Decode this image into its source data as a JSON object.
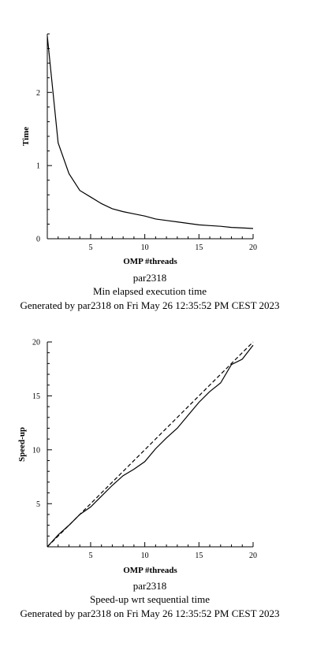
{
  "chart_data": [
    {
      "type": "line",
      "xlabel": "OMP #threads",
      "ylabel": "Time",
      "xlim": [
        1,
        20
      ],
      "ylim": [
        0,
        2.8
      ],
      "xticks": [
        5,
        10,
        15,
        20
      ],
      "yticks": [
        0,
        1,
        2
      ],
      "captions": [
        "par2318",
        "Min elapsed execution time",
        "Generated by par2318 on Fri May 26 12:35:52 PM CEST 2023"
      ],
      "series": [
        {
          "x": [
            1,
            2,
            3,
            4,
            5,
            6,
            7,
            8,
            9,
            10,
            11,
            12,
            13,
            14,
            15,
            16,
            17,
            18,
            19,
            20
          ],
          "values": [
            2.77,
            1.31,
            0.89,
            0.66,
            0.57,
            0.48,
            0.41,
            0.37,
            0.34,
            0.31,
            0.27,
            0.25,
            0.23,
            0.21,
            0.19,
            0.18,
            0.17,
            0.155,
            0.148,
            0.14
          ],
          "style": "solid"
        }
      ]
    },
    {
      "type": "line",
      "xlabel": "OMP #threads",
      "ylabel": "Speed-up",
      "xlim": [
        1,
        20
      ],
      "ylim": [
        1,
        20
      ],
      "xticks": [
        5,
        10,
        15,
        20
      ],
      "yticks": [
        5,
        10,
        15,
        20
      ],
      "captions": [
        "par2318",
        "Speed-up wrt sequential time",
        "Generated by par2318 on Fri May 26 12:35:52 PM CEST 2023"
      ],
      "series": [
        {
          "x": [
            1,
            2,
            3,
            4,
            5,
            6,
            7,
            8,
            9,
            10,
            11,
            12,
            13,
            14,
            15,
            16,
            17,
            18,
            19,
            20
          ],
          "values": [
            1,
            2.1,
            3.0,
            4.0,
            4.7,
            5.7,
            6.7,
            7.6,
            8.2,
            8.9,
            10.1,
            11.1,
            12.0,
            13.2,
            14.4,
            15.4,
            16.2,
            17.9,
            18.4,
            19.7
          ],
          "style": "solid"
        },
        {
          "x": [
            1,
            20
          ],
          "values": [
            1,
            20
          ],
          "style": "dashed"
        }
      ]
    }
  ]
}
